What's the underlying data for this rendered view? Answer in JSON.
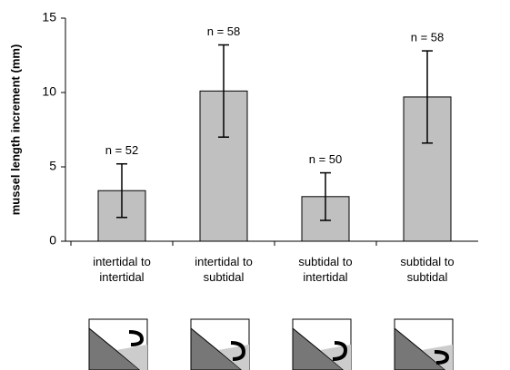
{
  "chart_data": {
    "type": "bar",
    "y_label": "mussel length increment (mm)",
    "categories": [
      "intertidal to\nintertidal",
      "intertidal to\nsubtidal",
      "subtidal to\nintertidal",
      "subtidal to\nsubtidal"
    ],
    "values": [
      3.4,
      10.1,
      3.0,
      9.7
    ],
    "errors": [
      1.8,
      3.1,
      1.6,
      3.1
    ],
    "annotations": [
      "n = 52",
      "n = 58",
      "n = 50",
      "n = 58"
    ],
    "color": "#c0c0c0",
    "ylim": [
      0,
      15
    ],
    "yticks": [
      0,
      5,
      10,
      15
    ],
    "grid": false
  }
}
